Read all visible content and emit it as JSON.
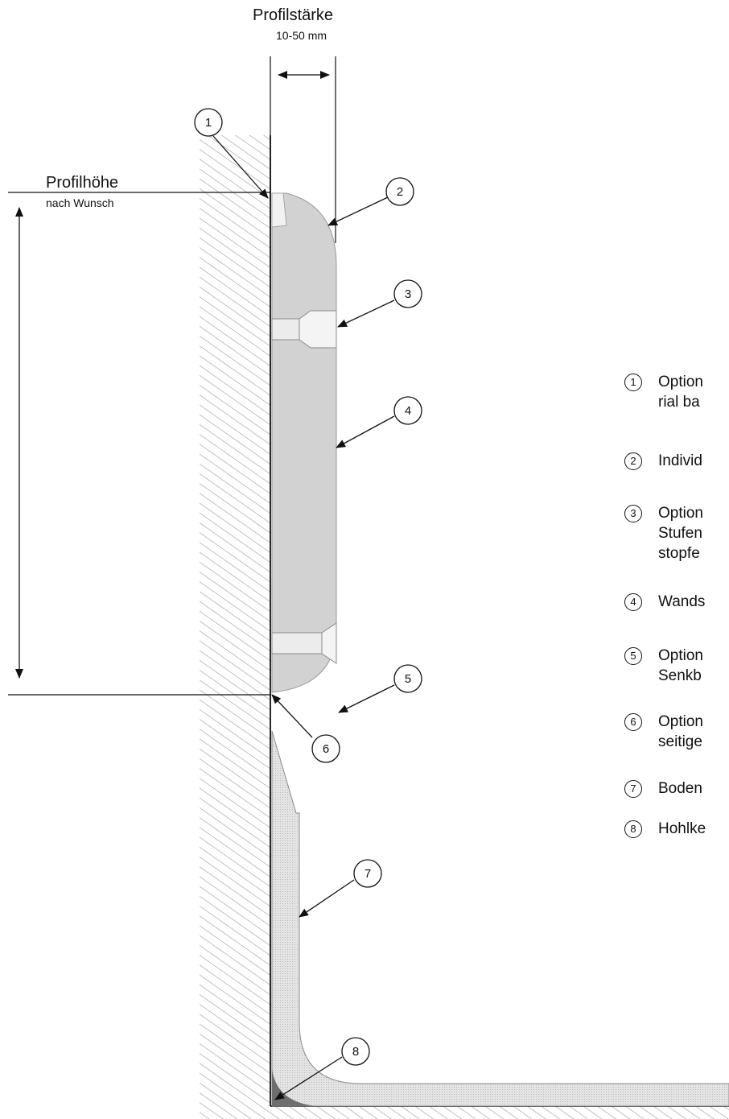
{
  "dimensions": {
    "thickness_title": "Profilstärke",
    "thickness_value": "10-50 mm",
    "height_title": "Profilhöhe",
    "height_value": "nach Wunsch"
  },
  "callouts": [
    "1",
    "2",
    "3",
    "4",
    "5",
    "6",
    "7",
    "8"
  ],
  "legend": [
    {
      "num": "1",
      "lines": [
        "Option",
        "rial ba"
      ]
    },
    {
      "num": "2",
      "lines": [
        "Individ"
      ]
    },
    {
      "num": "3",
      "lines": [
        "Option",
        "Stufen",
        "stopfe"
      ]
    },
    {
      "num": "4",
      "lines": [
        "Wands"
      ]
    },
    {
      "num": "5",
      "lines": [
        "Option",
        "Senkb"
      ]
    },
    {
      "num": "6",
      "lines": [
        "Option",
        "seitige"
      ]
    },
    {
      "num": "7",
      "lines": [
        "Boden"
      ]
    },
    {
      "num": "8",
      "lines": [
        "Hohlke"
      ]
    }
  ],
  "colors": {
    "profile_fill": "#d2d2d2",
    "floor_fill": "#e2e2e2",
    "cove_fill": "#6e6e6e",
    "hatch": "#9a9a9a",
    "line": "#111111"
  }
}
